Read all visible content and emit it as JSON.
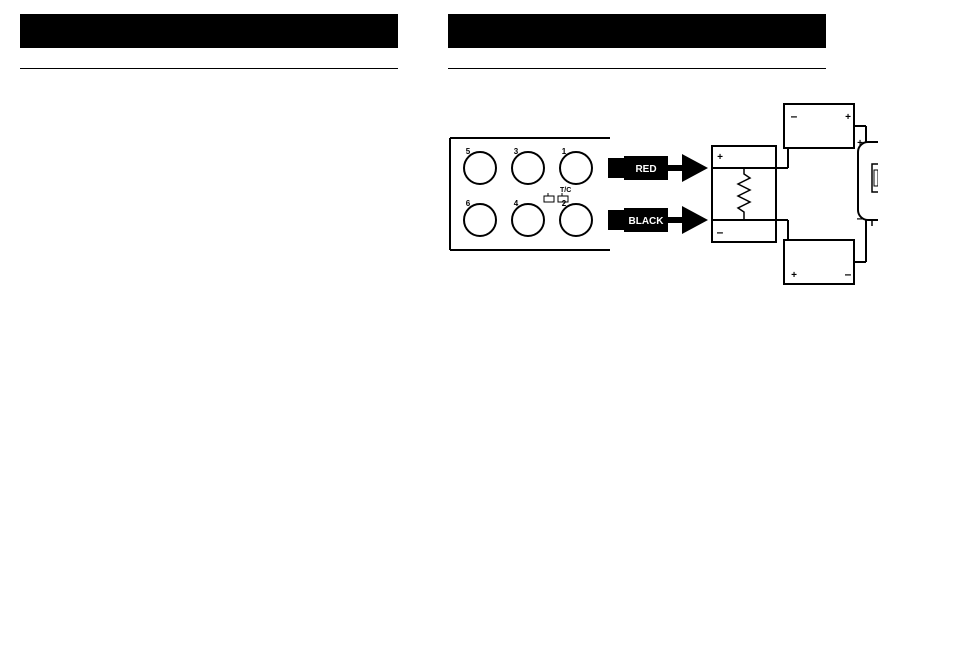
{
  "header_left_text": " ",
  "header_right_text": " ",
  "diagram": {
    "type": "wiring-diagram",
    "panel_label": "T/C",
    "terminals": [
      "5",
      "3",
      "1",
      "6",
      "4",
      "2"
    ],
    "wire_labels": {
      "top": "RED",
      "bottom": "BLACK"
    },
    "colors": {
      "bg": "#ffffff",
      "line": "#000000",
      "label_bg": "#000000",
      "label_text": "#ffffff"
    },
    "stroke_width": 2,
    "signs": [
      "+",
      "–",
      "+",
      "–",
      "+",
      "–"
    ]
  }
}
